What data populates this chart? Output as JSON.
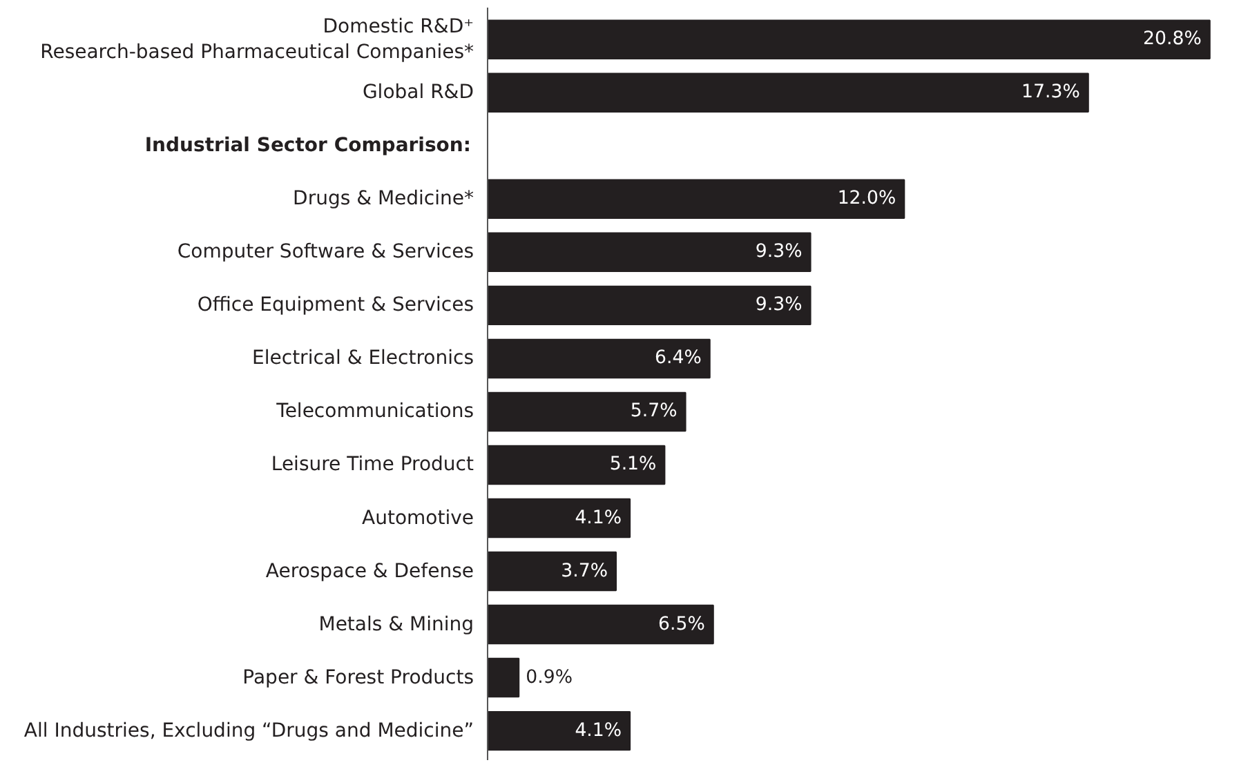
{
  "chart_data": {
    "type": "bar",
    "orientation": "horizontal",
    "categories": [
      "Domestic R&D⁺\nResearch-based Pharmaceutical Companies*",
      "Global R&D",
      null,
      "Drugs & Medicine*",
      "Computer Software & Services",
      "Office Equipment & Services",
      "Electrical & Electronics",
      "Telecommunications",
      "Leisure Time Product",
      "Automotive",
      "Aerospace & Defense",
      "Metals & Mining",
      "Paper & Forest Products",
      "All Industries, Excluding “Drugs and Medicine”"
    ],
    "values": [
      20.8,
      17.3,
      null,
      12.0,
      9.3,
      9.3,
      6.4,
      5.7,
      5.1,
      4.1,
      3.7,
      6.5,
      0.9,
      4.1
    ],
    "value_labels": [
      "20.8%",
      "17.3%",
      null,
      "12.0%",
      "9.3%",
      "9.3%",
      "6.4%",
      "5.7%",
      "5.1%",
      "4.1%",
      "3.7%",
      "6.5%",
      "0.9%",
      "4.1%"
    ],
    "color": "#231f20",
    "annotations": [
      "Industrial Sector Comparison:"
    ],
    "grid": false
  }
}
